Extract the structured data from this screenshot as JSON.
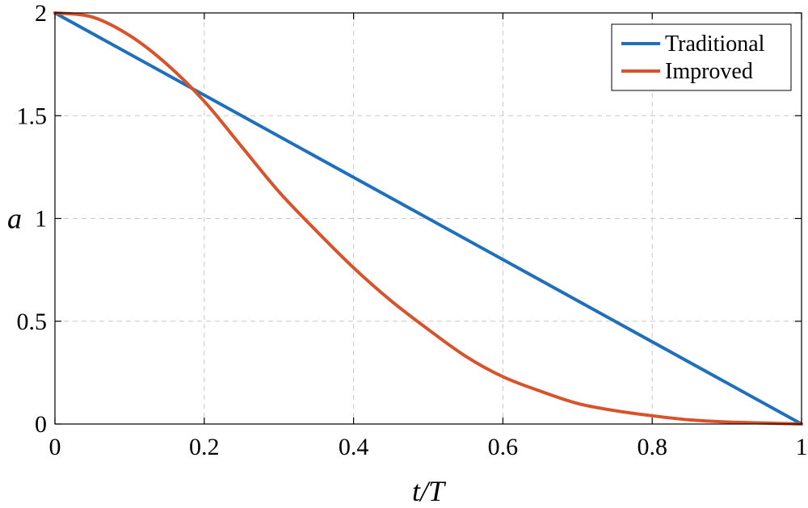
{
  "chart_data": {
    "type": "line",
    "xlabel": "t/T",
    "ylabel": "a",
    "xlim": [
      0,
      1
    ],
    "ylim": [
      0,
      2
    ],
    "xticks": [
      0,
      0.2,
      0.4,
      0.6,
      0.8,
      1
    ],
    "yticks": [
      0,
      0.5,
      1,
      1.5,
      2
    ],
    "xtick_labels": [
      "0",
      "0.2",
      "0.4",
      "0.6",
      "0.8",
      "1"
    ],
    "ytick_labels": [
      "0",
      "0.5",
      "1",
      "1.5",
      "2"
    ],
    "grid": true,
    "legend_position": "top-right",
    "series": [
      {
        "name": "Traditional",
        "color": "#1f6fbf",
        "x": [
          0,
          1
        ],
        "y": [
          2,
          0
        ]
      },
      {
        "name": "Improved",
        "color": "#d9532a",
        "x": [
          0,
          0.05,
          0.1,
          0.15,
          0.2,
          0.25,
          0.3,
          0.35,
          0.4,
          0.45,
          0.5,
          0.55,
          0.6,
          0.65,
          0.7,
          0.75,
          0.8,
          0.85,
          0.9,
          0.95,
          1
        ],
        "y": [
          2,
          1.98,
          1.89,
          1.75,
          1.57,
          1.35,
          1.13,
          0.94,
          0.76,
          0.6,
          0.46,
          0.33,
          0.23,
          0.16,
          0.1,
          0.065,
          0.04,
          0.02,
          0.01,
          0.005,
          0
        ]
      }
    ]
  }
}
